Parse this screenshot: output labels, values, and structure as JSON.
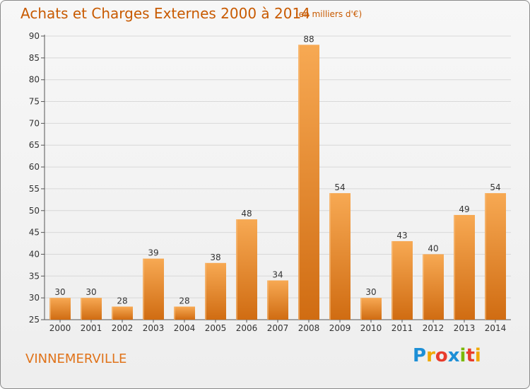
{
  "header": {
    "title": "Achats et Charges Externes 2000 à 2014",
    "unit": "(en milliers d'€)"
  },
  "footer": {
    "commune": "VINNEMERVILLE",
    "logo": "Proxiti"
  },
  "colors": {
    "title": "#c85a00",
    "bar_light": "#f5a650",
    "bar_dark": "#d06a10",
    "grid": "#d8d8d8"
  },
  "chart_data": {
    "type": "bar",
    "title": "Achats et Charges Externes 2000 à 2014",
    "subtitle": "(en milliers d'€)",
    "xlabel": "",
    "ylabel": "",
    "ylim": [
      25,
      90
    ],
    "yticks": [
      25,
      30,
      35,
      40,
      45,
      50,
      55,
      60,
      65,
      70,
      75,
      80,
      85,
      90
    ],
    "grid": true,
    "legend": "none",
    "categories": [
      "2000",
      "2001",
      "2002",
      "2003",
      "2004",
      "2005",
      "2006",
      "2007",
      "2008",
      "2009",
      "2010",
      "2011",
      "2012",
      "2013",
      "2014"
    ],
    "values": [
      30,
      30,
      28,
      39,
      28,
      38,
      48,
      34,
      88,
      54,
      30,
      43,
      40,
      49,
      54
    ]
  }
}
